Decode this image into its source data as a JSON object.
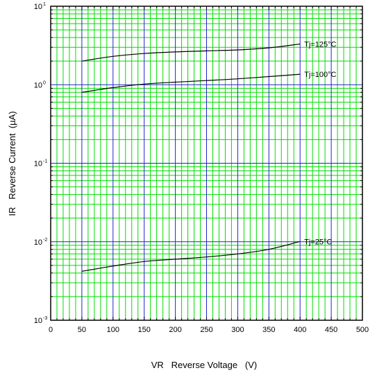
{
  "chart_data": {
    "type": "line",
    "xlabel": "VR   Reverse Voltage   (V)",
    "ylabel": "IR   Reverse Current  (µA)",
    "xlim": [
      0,
      500
    ],
    "ylim": [
      0.001,
      10
    ],
    "yscale": "log",
    "x_ticks": [
      0,
      50,
      100,
      150,
      200,
      250,
      300,
      350,
      400,
      450,
      500
    ],
    "y_ticks": [
      {
        "base": "10",
        "exp": "-3",
        "value": 0.001
      },
      {
        "base": "10",
        "exp": "-2",
        "value": 0.01
      },
      {
        "base": "10",
        "exp": "-1",
        "value": 0.1
      },
      {
        "base": "10",
        "exp": "0",
        "value": 1
      },
      {
        "base": "10",
        "exp": "1",
        "value": 10
      }
    ],
    "grid": true,
    "colors": {
      "major_grid": "#2222cc",
      "minor_grid": "#00dd00",
      "curve": "#000000",
      "frame": "#000000"
    },
    "series": [
      {
        "name": "Tj=125°C",
        "x": [
          50,
          100,
          150,
          200,
          250,
          300,
          350,
          400
        ],
        "y": [
          2.0,
          2.3,
          2.5,
          2.62,
          2.7,
          2.78,
          2.95,
          3.3
        ]
      },
      {
        "name": "Tj=100°C",
        "x": [
          50,
          100,
          150,
          200,
          250,
          300,
          350,
          400
        ],
        "y": [
          0.8,
          0.92,
          1.02,
          1.08,
          1.13,
          1.19,
          1.27,
          1.36
        ]
      },
      {
        "name": "Tj=25°C",
        "x": [
          50,
          100,
          150,
          200,
          250,
          300,
          350,
          400
        ],
        "y": [
          0.0042,
          0.0049,
          0.0056,
          0.006,
          0.0064,
          0.007,
          0.008,
          0.0101
        ]
      }
    ]
  }
}
